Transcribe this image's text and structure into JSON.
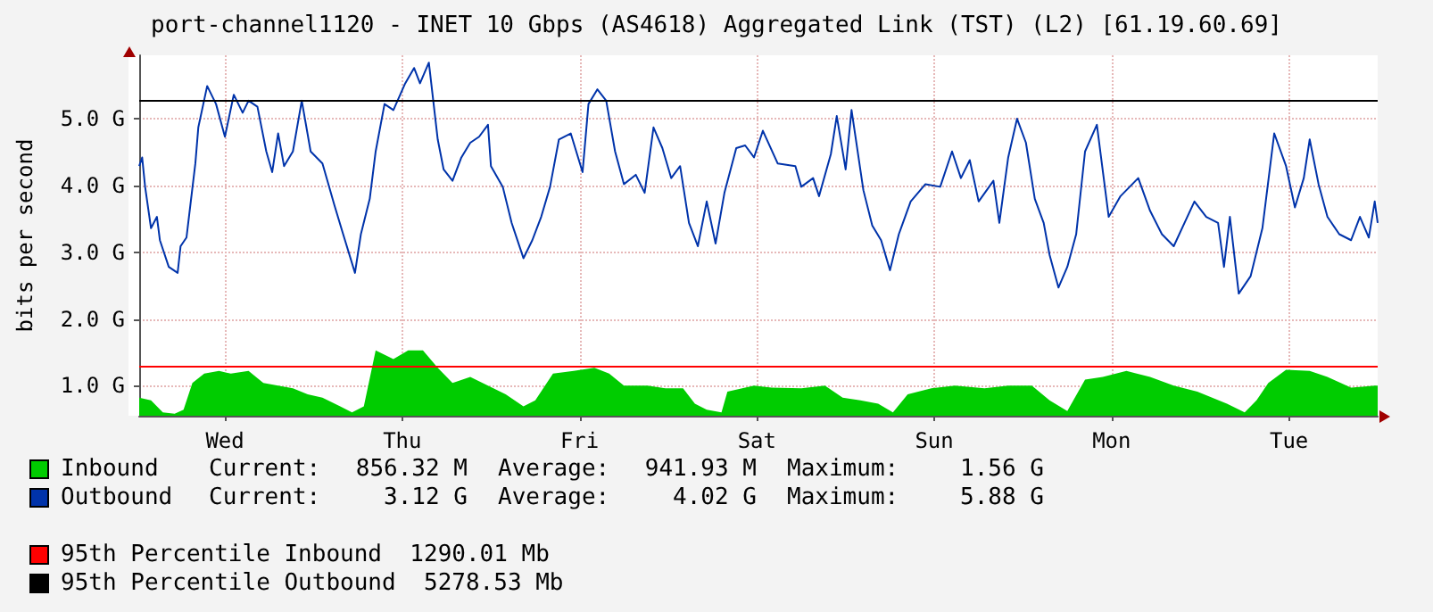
{
  "chart_data": {
    "type": "line",
    "title": "port-channel1120 - INET 10 Gbps (AS4618) Aggregated Link (TST) (L2) [61.19.60.69]",
    "ylabel": "bits per second",
    "categories": [
      null,
      null,
      null,
      null,
      null,
      null,
      null,
      null,
      null,
      null,
      null,
      null,
      null,
      null,
      null,
      null,
      null,
      null,
      null,
      null,
      null,
      null,
      null,
      null,
      null,
      null,
      null,
      null,
      null,
      "Wed",
      null,
      null,
      null,
      null,
      null,
      null,
      null,
      null,
      null,
      null,
      null,
      null,
      null,
      null,
      null,
      null,
      null,
      null,
      null,
      null,
      null,
      null,
      null,
      null,
      null,
      null,
      null,
      null,
      null,
      null,
      null,
      null,
      null,
      null,
      null,
      null,
      null,
      null,
      null,
      null,
      null,
      null,
      null,
      null,
      null,
      null,
      null,
      null,
      null,
      null,
      null,
      null,
      null,
      null,
      null,
      null,
      null,
      null,
      null,
      "Thu",
      null,
      null,
      null,
      null,
      null,
      null,
      null,
      null,
      null,
      null,
      null,
      null,
      null,
      null,
      null,
      null,
      null,
      null,
      null,
      null,
      null,
      null,
      null,
      null,
      null,
      null,
      null,
      null,
      null,
      null,
      null,
      null,
      null,
      null,
      null,
      null,
      null,
      null,
      null,
      null,
      null,
      null,
      null,
      null,
      null,
      null,
      null,
      null,
      null,
      null,
      null,
      null,
      null,
      null,
      null,
      null,
      null,
      null,
      null,
      "Fri",
      null,
      null,
      null,
      null,
      null,
      null,
      null,
      null,
      null,
      null,
      null,
      null,
      null,
      null,
      null,
      null,
      null,
      null,
      null,
      null,
      null,
      null,
      null,
      null,
      null,
      null,
      null,
      null,
      null,
      null,
      null,
      null,
      null,
      null,
      null,
      null,
      null,
      null,
      null,
      null,
      null,
      null,
      null,
      null,
      null,
      null,
      null,
      null,
      null,
      null,
      null,
      null,
      null,
      null,
      null,
      null,
      null,
      null,
      null,
      "Sat",
      null,
      null,
      null,
      null,
      null,
      null,
      null,
      null,
      null,
      null,
      null,
      null,
      null,
      null,
      null,
      null,
      null,
      null,
      null,
      null,
      null,
      null,
      null,
      null,
      null,
      null,
      null,
      null,
      null,
      null,
      null,
      null,
      null,
      null,
      null,
      null,
      null,
      null,
      null,
      null,
      null,
      null,
      null,
      null,
      null,
      null,
      null,
      null,
      null,
      null,
      null,
      null,
      null,
      null,
      null,
      null,
      null,
      null,
      null,
      "Sun",
      null,
      null,
      null,
      null,
      null,
      null,
      null,
      null,
      null,
      null,
      null,
      null,
      null,
      null,
      null,
      null,
      null,
      null,
      null,
      null,
      null,
      null,
      null,
      null,
      null,
      null,
      null,
      null,
      null,
      null,
      null,
      null,
      null,
      null,
      null,
      null,
      null,
      null,
      null,
      null,
      null,
      null,
      null,
      null,
      null,
      null,
      null,
      null,
      null,
      null,
      null,
      null,
      null,
      null,
      null,
      null,
      null,
      null,
      null,
      "Mon",
      null,
      null,
      null,
      null,
      null,
      null,
      null,
      null,
      null,
      null,
      null,
      null,
      null,
      null,
      null,
      null,
      null,
      null,
      null,
      null,
      null,
      null,
      null,
      null,
      null,
      null,
      null,
      null,
      null,
      null,
      null,
      null,
      null,
      null,
      null,
      null,
      null,
      null,
      null,
      null,
      null,
      null,
      null,
      null,
      null,
      null,
      null,
      null,
      null,
      null,
      null,
      null,
      null,
      null,
      null,
      null,
      null,
      null,
      null,
      "Tue",
      null,
      null,
      null,
      null,
      null,
      null,
      null,
      null,
      null,
      null,
      null,
      null,
      null,
      null,
      null,
      null,
      null,
      null,
      null,
      null,
      null,
      null,
      null,
      null,
      null,
      null,
      null,
      null,
      null,
      null
    ],
    "ylim": [
      0.55,
      5.95
    ],
    "yticks": [
      {
        "value": 1,
        "label": "1.0 G"
      },
      {
        "value": 2,
        "label": "2.0 G"
      },
      {
        "value": 3,
        "label": "3.0 G"
      },
      {
        "value": 4,
        "label": "4.0 G"
      },
      {
        "value": 5,
        "label": "5.0 G"
      }
    ],
    "grid": true,
    "legend": "bottom",
    "series": [
      {
        "name": "Inbound",
        "type": "area",
        "color": "#00cc00",
        "values": [
          0.82,
          null,
          null,
          null,
          0.78,
          null,
          null,
          null,
          0.6,
          null,
          null,
          null,
          0.58,
          null,
          null,
          0.64,
          null,
          null,
          1.04,
          null,
          null,
          null,
          1.18,
          null,
          null,
          null,
          null,
          1.22,
          null,
          null,
          null,
          1.18,
          null,
          null,
          null,
          null,
          null,
          1.22,
          null,
          null,
          null,
          null,
          1.04,
          null,
          null,
          null,
          null,
          1.0,
          null,
          null,
          null,
          null,
          0.96,
          null,
          null,
          null,
          null,
          0.87,
          null,
          null,
          null,
          null,
          0.82,
          null,
          null,
          null,
          null,
          null,
          0.69,
          null,
          null,
          null,
          0.6,
          null,
          null,
          null,
          0.69,
          null,
          null,
          null,
          1.53,
          null,
          null,
          null,
          null,
          null,
          1.4,
          null,
          null,
          null,
          null,
          1.53,
          null,
          null,
          null,
          null,
          1.53,
          null,
          null,
          null,
          null,
          1.27,
          null,
          null,
          null,
          null,
          1.04,
          null,
          null,
          null,
          null,
          null,
          1.13,
          null,
          null,
          null,
          null,
          null,
          1.0,
          null,
          null,
          null,
          null,
          null,
          0.87,
          null,
          null,
          null,
          null,
          null,
          0.69,
          null,
          null,
          null,
          0.78,
          null,
          null,
          null,
          null,
          null,
          1.18,
          null,
          null,
          null,
          null,
          null,
          null,
          1.22,
          null,
          null,
          null,
          null,
          null,
          null,
          1.27,
          null,
          null,
          null,
          null,
          1.18,
          null,
          null,
          null,
          null,
          1.0,
          null,
          null,
          null,
          null,
          null,
          null,
          null,
          1.0,
          null,
          null,
          null,
          null,
          null,
          0.96,
          null,
          null,
          null,
          null,
          null,
          0.96,
          null,
          null,
          null,
          0.73,
          null,
          null,
          null,
          0.64,
          null,
          null,
          null,
          null,
          0.6,
          null,
          0.91,
          null,
          null,
          null,
          null,
          0.96,
          null,
          null,
          null,
          1.0,
          null,
          null,
          null,
          null,
          null,
          0.97,
          null,
          null,
          null,
          null,
          null,
          null,
          null,
          null,
          null,
          0.96,
          null,
          null,
          null,
          null,
          null,
          null,
          null,
          1.0,
          null,
          null,
          null,
          null,
          null,
          0.82,
          null,
          null,
          null,
          null,
          null,
          0.78,
          null,
          null,
          null,
          null,
          null,
          0.73,
          null,
          null,
          null,
          null,
          0.6,
          null,
          null,
          null,
          null,
          0.87,
          null,
          null,
          null,
          null,
          null,
          null,
          null,
          0.96,
          null,
          null,
          null,
          null,
          null,
          null,
          null,
          1.0,
          null,
          null,
          null,
          null,
          null,
          null,
          null,
          null,
          null,
          0.96,
          null,
          null,
          null,
          null,
          null,
          null,
          null,
          1.0,
          null,
          null,
          null,
          null,
          null,
          null,
          null,
          1.0,
          null,
          null,
          null,
          null,
          null,
          0.78,
          null,
          null,
          null,
          null,
          null,
          0.62,
          null,
          null,
          null,
          null,
          null,
          1.09,
          null,
          null,
          null,
          null,
          null,
          1.13,
          null,
          null,
          null,
          null,
          null,
          null,
          null,
          1.22,
          null,
          null,
          null,
          null,
          null,
          null,
          null,
          1.13,
          null,
          null,
          null,
          null,
          null,
          null,
          null,
          1.0,
          null,
          null,
          null,
          null,
          null,
          null,
          null,
          0.91,
          null,
          null,
          null,
          null,
          null,
          null,
          null,
          null,
          null,
          0.73,
          null,
          null,
          null,
          null,
          null,
          0.6,
          null,
          null,
          null,
          0.78,
          null,
          null,
          null,
          1.04,
          null,
          null,
          null,
          null,
          null,
          1.24,
          null,
          null,
          null,
          null,
          null,
          null,
          null,
          1.22,
          null,
          null,
          null,
          null,
          null,
          1.13,
          null,
          null,
          null,
          null,
          null,
          null,
          null,
          0.97,
          null,
          null,
          null,
          null,
          null,
          null,
          null,
          1.0,
          1.0
        ]
      },
      {
        "name": "Outbound",
        "type": "line",
        "color": "#0033aa",
        "values": [
          4.29,
          4.42,
          3.98,
          null,
          3.36,
          null,
          3.53,
          3.18,
          null,
          null,
          2.78,
          null,
          null,
          2.69,
          3.09,
          null,
          3.22,
          null,
          null,
          4.33,
          4.87,
          null,
          null,
          5.49,
          null,
          null,
          5.22,
          null,
          null,
          4.73,
          null,
          null,
          5.36,
          null,
          null,
          5.09,
          null,
          5.27,
          null,
          null,
          5.18,
          null,
          null,
          4.51,
          null,
          4.2,
          null,
          4.78,
          null,
          4.29,
          null,
          null,
          4.51,
          null,
          null,
          5.27,
          null,
          null,
          4.51,
          null,
          null,
          null,
          4.33,
          null,
          null,
          null,
          3.71,
          null,
          null,
          3.27,
          null,
          null,
          null,
          2.69,
          null,
          3.27,
          null,
          null,
          3.8,
          null,
          4.51,
          null,
          null,
          5.22,
          null,
          null,
          5.13,
          null,
          null,
          null,
          5.53,
          null,
          null,
          5.76,
          null,
          5.53,
          null,
          null,
          5.84,
          null,
          null,
          4.69,
          null,
          4.24,
          null,
          null,
          4.07,
          null,
          null,
          4.42,
          null,
          null,
          4.64,
          null,
          null,
          4.73,
          null,
          null,
          4.91,
          4.29,
          null,
          null,
          null,
          3.98,
          null,
          null,
          3.44,
          null,
          null,
          null,
          2.91,
          null,
          null,
          3.18,
          null,
          null,
          3.53,
          null,
          null,
          3.98,
          null,
          null,
          4.69,
          null,
          null,
          null,
          4.78,
          null,
          null,
          null,
          4.2,
          null,
          5.22,
          null,
          null,
          5.44,
          null,
          null,
          5.27,
          null,
          null,
          4.51,
          null,
          null,
          4.02,
          null,
          null,
          null,
          4.16,
          null,
          null,
          3.89,
          null,
          null,
          4.87,
          null,
          null,
          4.56,
          null,
          null,
          4.11,
          null,
          null,
          4.29,
          null,
          null,
          3.44,
          null,
          null,
          3.09,
          null,
          null,
          3.76,
          null,
          null,
          3.13,
          null,
          null,
          3.89,
          null,
          null,
          null,
          4.56,
          null,
          null,
          4.6,
          null,
          null,
          4.42,
          null,
          null,
          4.82,
          null,
          null,
          null,
          null,
          4.33,
          null,
          null,
          null,
          null,
          null,
          4.29,
          null,
          3.98,
          null,
          null,
          null,
          4.11,
          null,
          3.84,
          null,
          null,
          null,
          4.47,
          null,
          5.04,
          null,
          null,
          4.24,
          null,
          5.13,
          null,
          null,
          null,
          3.93,
          null,
          null,
          3.4,
          null,
          null,
          3.18,
          null,
          null,
          2.73,
          null,
          null,
          3.27,
          null,
          null,
          null,
          3.76,
          null,
          null,
          null,
          null,
          4.02,
          null,
          null,
          null,
          null,
          3.98,
          null,
          null,
          null,
          4.51,
          null,
          null,
          4.11,
          null,
          null,
          4.38,
          null,
          null,
          3.76,
          null,
          null,
          null,
          null,
          4.07,
          null,
          3.44,
          null,
          null,
          4.42,
          null,
          null,
          5.0,
          null,
          null,
          4.64,
          null,
          null,
          3.8,
          null,
          null,
          3.44,
          null,
          2.96,
          null,
          null,
          2.47,
          null,
          null,
          2.78,
          null,
          null,
          3.27,
          null,
          null,
          4.51,
          null,
          null,
          null,
          4.91,
          null,
          null,
          null,
          3.53,
          null,
          null,
          null,
          3.84,
          null,
          null,
          null,
          null,
          null,
          4.11,
          null,
          null,
          null,
          3.62,
          null,
          null,
          null,
          3.27,
          null,
          null,
          null,
          3.09,
          null,
          null,
          null,
          null,
          null,
          null,
          3.76,
          null,
          null,
          null,
          3.53,
          null,
          null,
          null,
          3.44,
          null,
          2.78,
          null,
          3.53,
          null,
          null,
          2.38,
          null,
          null,
          null,
          2.64,
          null,
          null,
          null,
          3.36,
          null,
          null,
          null,
          4.78,
          null,
          null,
          null,
          4.29,
          null,
          null,
          3.67,
          null,
          null,
          4.11,
          null,
          4.69,
          null,
          null,
          4.02,
          null,
          null,
          3.53,
          null,
          null,
          null,
          3.27,
          null,
          null,
          null,
          3.18,
          null,
          null,
          3.53,
          null,
          null,
          3.22,
          null,
          3.76,
          3.44
        ]
      }
    ],
    "ref_lines": [
      {
        "axis": "y",
        "value": 1.29001,
        "label": "95th Percentile Inbound  1290.01 Mb",
        "color": "#ff0000"
      },
      {
        "axis": "y",
        "value": 5.27853,
        "label": "95th Percentile Outbound  5278.53 Mb",
        "color": "#000000"
      }
    ],
    "annotations": [
      "Current:",
      "856.32 M",
      "Average:",
      "941.93 M",
      "Maximum:",
      "1.56 G",
      "Current:",
      "3.12 G",
      "Average:",
      "4.02 G",
      "Maximum:",
      "5.88 G"
    ]
  }
}
